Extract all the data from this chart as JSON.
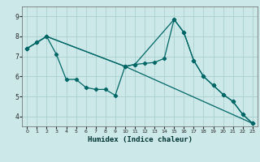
{
  "xlabel": "Humidex (Indice chaleur)",
  "background_color": "#cce8e8",
  "grid_color": "#aad0d0",
  "line_color": "#006666",
  "xlim": [
    -0.5,
    23.5
  ],
  "ylim": [
    3.5,
    9.5
  ],
  "xticks": [
    0,
    1,
    2,
    3,
    4,
    5,
    6,
    7,
    8,
    9,
    10,
    11,
    12,
    13,
    14,
    15,
    16,
    17,
    18,
    19,
    20,
    21,
    22,
    23
  ],
  "yticks": [
    4,
    5,
    6,
    7,
    8,
    9
  ],
  "line1_x": [
    0,
    1,
    2,
    3,
    4,
    5,
    6,
    7,
    8,
    9,
    10,
    11,
    12,
    13,
    14,
    15,
    16,
    17,
    18,
    19,
    20,
    21,
    22,
    23
  ],
  "line1_y": [
    7.4,
    7.7,
    8.0,
    7.1,
    5.85,
    5.85,
    5.45,
    5.35,
    5.35,
    5.05,
    6.5,
    6.6,
    6.65,
    6.7,
    6.9,
    8.85,
    8.2,
    6.8,
    6.0,
    5.55,
    5.1,
    4.75,
    4.1,
    3.65
  ],
  "line2_x": [
    0,
    1,
    2,
    10,
    11,
    15,
    16,
    17,
    18,
    19,
    20,
    21,
    22,
    23
  ],
  "line2_y": [
    7.4,
    7.7,
    8.0,
    6.5,
    6.6,
    8.85,
    8.2,
    6.8,
    6.0,
    5.55,
    5.1,
    4.75,
    4.1,
    3.65
  ],
  "line3_x": [
    0,
    2,
    10,
    23
  ],
  "line3_y": [
    7.4,
    8.0,
    6.5,
    3.65
  ]
}
